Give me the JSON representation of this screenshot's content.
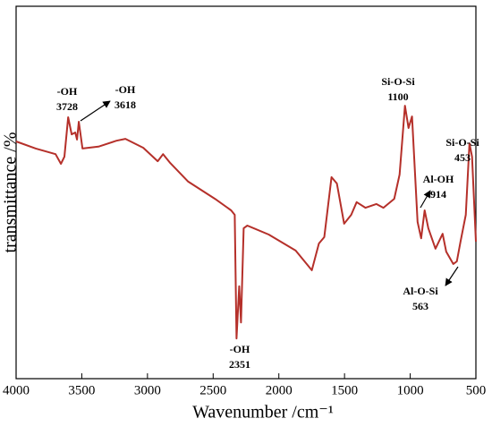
{
  "chart_data": {
    "type": "line",
    "x_label": "Wavenumber /cm⁻¹",
    "y_label": "transmittance /%",
    "xlim": [
      4000,
      500
    ],
    "xticks": [
      4000,
      3500,
      3000,
      2500,
      2000,
      1500,
      1000,
      500
    ],
    "ylim": [
      0,
      100
    ],
    "color": "#b5302a",
    "x": [
      4000,
      3850,
      3700,
      3659,
      3632,
      3604,
      3577,
      3550,
      3536,
      3523,
      3495,
      3373,
      3236,
      3168,
      3032,
      2922,
      2881,
      2827,
      2690,
      2486,
      2363,
      2336,
      2322,
      2302,
      2288,
      2268,
      2240,
      2077,
      1872,
      1749,
      1695,
      1654,
      1599,
      1558,
      1503,
      1449,
      1408,
      1340,
      1258,
      1204,
      1122,
      1081,
      1040,
      1013,
      986,
      944,
      917,
      890,
      862,
      808,
      753,
      726,
      672,
      645,
      617,
      577,
      549,
      529,
      500
    ],
    "values": [
      63.7,
      61.8,
      60.3,
      57.7,
      59.6,
      70.2,
      65.6,
      66.1,
      64.2,
      69.0,
      61.8,
      62.3,
      63.9,
      64.4,
      62.0,
      58.4,
      60.3,
      57.9,
      52.9,
      48.3,
      45.2,
      44.0,
      10.8,
      24.8,
      15.1,
      40.4,
      41.1,
      38.7,
      34.4,
      29.1,
      36.3,
      38.0,
      54.1,
      52.4,
      41.6,
      44.0,
      47.4,
      45.9,
      46.9,
      45.9,
      48.3,
      54.8,
      73.3,
      67.3,
      70.4,
      42.1,
      37.7,
      45.2,
      40.4,
      34.9,
      38.9,
      34.1,
      30.8,
      31.5,
      36.8,
      44.0,
      63.2,
      59.6,
      36.8
    ],
    "annotations": [
      {
        "label": "-OH",
        "value": 3728
      },
      {
        "label": "-OH",
        "value": 3618
      },
      {
        "label": "-OH",
        "value": 2351
      },
      {
        "label": "Si-O-Si",
        "value": 1100
      },
      {
        "label": "Al-OH",
        "value": 914
      },
      {
        "label": "Al-O-Si",
        "value": 563
      },
      {
        "label": "Si-O-Si",
        "value": 453
      }
    ]
  }
}
